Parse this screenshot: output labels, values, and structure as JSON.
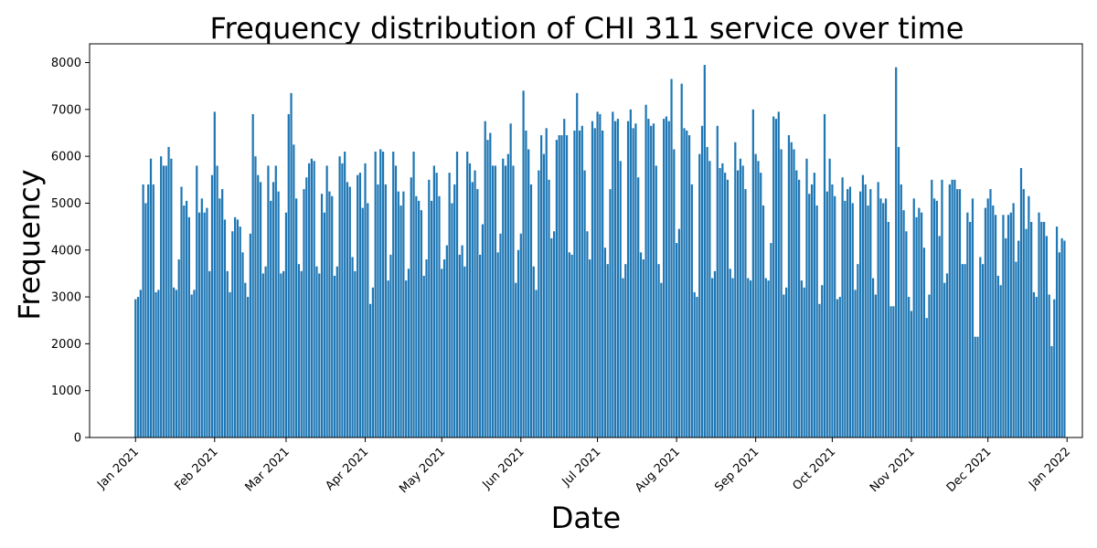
{
  "chart_data": {
    "type": "bar",
    "title": "Frequency distribution of CHI 311 service over time",
    "xlabel": "Date",
    "ylabel": "Frequency",
    "bar_color": "#1f77b4",
    "grid": false,
    "legend": "none",
    "x_range": [
      "2020-12-14",
      "2022-01-07"
    ],
    "ylim": [
      0,
      8400
    ],
    "y_ticks": [
      0,
      1000,
      2000,
      3000,
      4000,
      5000,
      6000,
      7000,
      8000
    ],
    "x_ticks": [
      {
        "date": "2021-01-01",
        "label": "Jan 2021"
      },
      {
        "date": "2021-02-01",
        "label": "Feb 2021"
      },
      {
        "date": "2021-03-01",
        "label": "Mar 2021"
      },
      {
        "date": "2021-04-01",
        "label": "Apr 2021"
      },
      {
        "date": "2021-05-01",
        "label": "May 2021"
      },
      {
        "date": "2021-06-01",
        "label": "Jun 2021"
      },
      {
        "date": "2021-07-01",
        "label": "Jul 2021"
      },
      {
        "date": "2021-08-01",
        "label": "Aug 2021"
      },
      {
        "date": "2021-09-01",
        "label": "Sep 2021"
      },
      {
        "date": "2021-10-01",
        "label": "Oct 2021"
      },
      {
        "date": "2021-11-01",
        "label": "Nov 2021"
      },
      {
        "date": "2021-12-01",
        "label": "Dec 2021"
      },
      {
        "date": "2022-01-01",
        "label": "Jan 2022"
      }
    ],
    "values": [
      2950,
      3000,
      3150,
      5400,
      5000,
      5400,
      5950,
      5400,
      3100,
      3150,
      6000,
      5800,
      5800,
      6200,
      5950,
      3200,
      3150,
      3800,
      5350,
      4950,
      5050,
      4700,
      3050,
      3150,
      5800,
      4800,
      5100,
      4800,
      4900,
      3550,
      5600,
      6950,
      5800,
      5100,
      5300,
      4650,
      3550,
      3100,
      4400,
      4700,
      4650,
      4500,
      3950,
      3300,
      3000,
      4350,
      6900,
      6000,
      5600,
      5450,
      3500,
      3650,
      5800,
      5050,
      5450,
      5800,
      5250,
      3500,
      3550,
      4800,
      6900,
      7350,
      6250,
      5100,
      3700,
      3550,
      5300,
      5550,
      5850,
      5950,
      5900,
      3650,
      3500,
      5200,
      4800,
      5800,
      5250,
      5150,
      3450,
      3650,
      6000,
      5850,
      6100,
      5450,
      5350,
      3850,
      3550,
      5600,
      5650,
      4900,
      5850,
      5000,
      2850,
      3200,
      6100,
      5400,
      6150,
      6100,
      5400,
      3350,
      3900,
      6100,
      5800,
      5250,
      4950,
      5250,
      3350,
      3600,
      5550,
      6100,
      5150,
      5050,
      4850,
      3450,
      3800,
      5500,
      5050,
      5800,
      5650,
      5150,
      3600,
      3800,
      4100,
      5650,
      5000,
      5400,
      6100,
      3900,
      4100,
      3650,
      6100,
      5850,
      5450,
      5700,
      5300,
      3900,
      4550,
      6750,
      6350,
      6500,
      5800,
      5800,
      3950,
      4350,
      5950,
      5800,
      6050,
      6700,
      5800,
      3300,
      4000,
      4350,
      7400,
      6550,
      6150,
      5400,
      3650,
      3150,
      5700,
      6450,
      6050,
      6600,
      5500,
      4250,
      4400,
      6350,
      6450,
      6450,
      6800,
      6450,
      3950,
      3900,
      6550,
      7350,
      6550,
      6650,
      5700,
      4400,
      3800,
      6750,
      6600,
      6950,
      6900,
      6550,
      4050,
      3700,
      5300,
      6950,
      6750,
      6800,
      5900,
      3400,
      3700,
      6750,
      7000,
      6600,
      6700,
      5550,
      3950,
      3800,
      7100,
      6800,
      6650,
      6700,
      5800,
      3700,
      3300,
      6800,
      6850,
      6750,
      7650,
      6150,
      4150,
      4450,
      7550,
      6600,
      6550,
      6450,
      5400,
      3100,
      3000,
      6050,
      6650,
      7950,
      6200,
      5900,
      3400,
      3550,
      6650,
      5750,
      5850,
      5650,
      5500,
      3600,
      3400,
      6300,
      5700,
      5950,
      5800,
      5300,
      3400,
      3350,
      7000,
      6050,
      5900,
      5650,
      4950,
      3400,
      3350,
      4150,
      6850,
      6800,
      6950,
      6150,
      3050,
      3200,
      6450,
      6300,
      6150,
      5700,
      5500,
      3350,
      3200,
      5950,
      5200,
      5400,
      5650,
      4950,
      2850,
      3250,
      6900,
      5250,
      5950,
      5400,
      5150,
      2950,
      3000,
      5550,
      5050,
      5300,
      5350,
      5000,
      3150,
      3700,
      5250,
      5600,
      5400,
      4950,
      5300,
      3400,
      3050,
      5450,
      5100,
      5000,
      5100,
      4600,
      2800,
      2800,
      7900,
      6200,
      5400,
      4850,
      4400,
      3000,
      2700,
      5100,
      4700,
      4900,
      4800,
      4050,
      2550,
      3050,
      5500,
      5100,
      5050,
      4300,
      5500,
      3300,
      3500,
      5400,
      5500,
      5500,
      5300,
      5300,
      3700,
      3700,
      4800,
      4600,
      5100,
      2150,
      2150,
      3850,
      3700,
      4900,
      5100,
      5300,
      4950,
      4750,
      3450,
      3250,
      4750,
      4250,
      4750,
      4800,
      5000,
      3750,
      4200,
      5750,
      5300,
      4450,
      5150,
      4600,
      3100,
      3000,
      4800,
      4600,
      4600,
      4300,
      3050,
      1950,
      2950,
      4500,
      3950,
      4250,
      4200
    ]
  }
}
